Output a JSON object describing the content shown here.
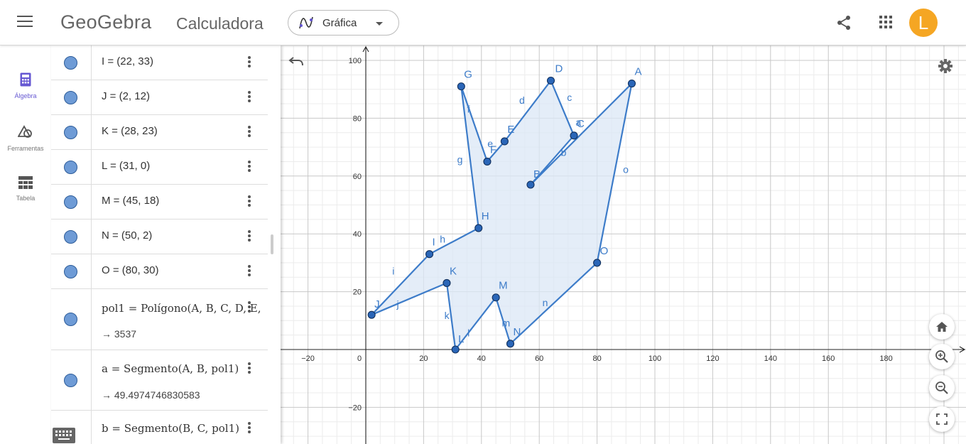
{
  "header": {
    "logo": "GeoGebra",
    "app_title": "Calculadora",
    "mode": "Gráfica",
    "avatar_letter": "L",
    "avatar_color": "#f5a623"
  },
  "sidenav": {
    "items": [
      {
        "label": "Álgebra",
        "icon": "calculator-icon",
        "active": true
      },
      {
        "label": "Ferramentas",
        "icon": "shapes-icon",
        "active": false
      },
      {
        "label": "Tabela",
        "icon": "table-icon",
        "active": false
      }
    ]
  },
  "algebra": {
    "rows": [
      {
        "expr": "I = (22, 33)"
      },
      {
        "expr": "J = (2, 12)"
      },
      {
        "expr": "K = (28, 23)"
      },
      {
        "expr": "L = (31, 0)"
      },
      {
        "expr": "M = (45, 18)"
      },
      {
        "expr": "N = (50, 2)"
      },
      {
        "expr": "O = (80, 30)"
      },
      {
        "expr": "pol1 = Polígono(A, B, C, D, E, F",
        "out": "→ 3537"
      },
      {
        "expr": "a = Segmento(A, B, pol1)",
        "out": "→ 49.4974746830583"
      },
      {
        "expr": "b = Segmento(B, C, pol1)"
      }
    ]
  },
  "graph": {
    "x_ticks": [
      "−20",
      "0",
      "20",
      "40",
      "60",
      "80",
      "100",
      "120",
      "140",
      "160",
      "180"
    ],
    "y_ticks": [
      "100",
      "80",
      "60",
      "40",
      "20",
      "−20"
    ],
    "points": [
      {
        "name": "A",
        "x": 92,
        "y": 92
      },
      {
        "name": "B",
        "x": 57,
        "y": 57
      },
      {
        "name": "C",
        "x": 72,
        "y": 74
      },
      {
        "name": "D",
        "x": 64,
        "y": 93
      },
      {
        "name": "E",
        "x": 48,
        "y": 72
      },
      {
        "name": "F",
        "x": 42,
        "y": 65
      },
      {
        "name": "G",
        "x": 33,
        "y": 91
      },
      {
        "name": "H",
        "x": 39,
        "y": 42
      },
      {
        "name": "I",
        "x": 22,
        "y": 33
      },
      {
        "name": "J",
        "x": 2,
        "y": 12
      },
      {
        "name": "K",
        "x": 28,
        "y": 23
      },
      {
        "name": "L",
        "x": 31,
        "y": 0
      },
      {
        "name": "M",
        "x": 45,
        "y": 18
      },
      {
        "name": "N",
        "x": 50,
        "y": 2
      },
      {
        "name": "O",
        "x": 80,
        "y": 30
      }
    ],
    "segment_labels": [
      {
        "name": "a"
      },
      {
        "name": "b"
      },
      {
        "name": "c"
      },
      {
        "name": "d"
      },
      {
        "name": "e"
      },
      {
        "name": "f"
      },
      {
        "name": "g"
      },
      {
        "name": "h"
      },
      {
        "name": "i"
      },
      {
        "name": "j"
      },
      {
        "name": "k"
      },
      {
        "name": "l"
      },
      {
        "name": "m"
      },
      {
        "name": "n"
      },
      {
        "name": "o"
      }
    ],
    "line_color": "#3d7cc9",
    "fill_color": "#dbe7f6"
  }
}
